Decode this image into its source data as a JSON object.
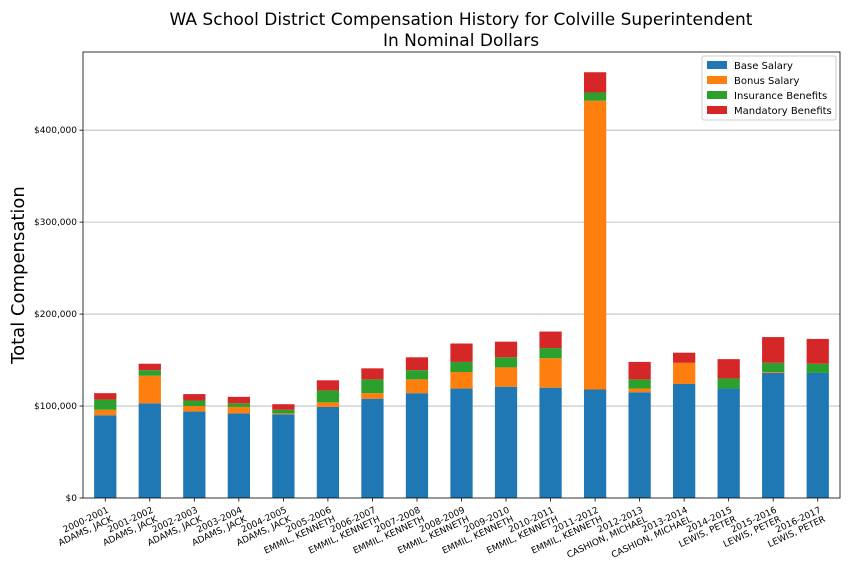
{
  "chart_data": {
    "type": "bar",
    "stacked": true,
    "title": "WA School District Compensation History for Colville Superintendent",
    "subtitle": "In Nominal Dollars",
    "xlabel": "",
    "ylabel": "Total Compensation",
    "ylim": [
      0,
      485000
    ],
    "yticks": [
      {
        "value": 0,
        "label": "$0"
      },
      {
        "value": 100000,
        "label": "$100,000"
      },
      {
        "value": 200000,
        "label": "$200,000"
      },
      {
        "value": 300000,
        "label": "$300,000"
      },
      {
        "value": 400000,
        "label": "$400,000"
      }
    ],
    "grid": "horizontal",
    "legend_position": "top-right",
    "categories": [
      [
        "2000-2001",
        "ADAMS, JACK"
      ],
      [
        "2001-2002",
        "ADAMS, JACK"
      ],
      [
        "2002-2003",
        "ADAMS, JACK"
      ],
      [
        "2003-2004",
        "ADAMS, JACK"
      ],
      [
        "2004-2005",
        "ADAMS, JACK"
      ],
      [
        "2005-2006",
        "EMMIL, KENNETH"
      ],
      [
        "2006-2007",
        "EMMIL, KENNETH"
      ],
      [
        "2007-2008",
        "EMMIL, KENNETH"
      ],
      [
        "2008-2009",
        "EMMIL, KENNETH"
      ],
      [
        "2009-2010",
        "EMMIL, KENNETH"
      ],
      [
        "2010-2011",
        "EMMIL, KENNETH"
      ],
      [
        "2011-2012",
        "EMMIL, KENNETH"
      ],
      [
        "2012-2013",
        "CASHION, MICHAEL"
      ],
      [
        "2013-2014",
        "CASHION, MICHAEL"
      ],
      [
        "2014-2015",
        "LEWIS, PETER"
      ],
      [
        "2015-2016",
        "LEWIS, PETER"
      ],
      [
        "2016-2017",
        "LEWIS, PETER"
      ]
    ],
    "series": [
      {
        "name": "Base Salary",
        "color": "#1f77b4",
        "values": [
          90000,
          103000,
          94000,
          92000,
          91000,
          99000,
          108000,
          114000,
          119000,
          121000,
          120000,
          118000,
          115000,
          124000,
          119000,
          136000,
          136000
        ]
      },
      {
        "name": "Bonus Salary",
        "color": "#ff7f0e",
        "values": [
          6000,
          30000,
          6000,
          7000,
          1000,
          5000,
          6000,
          15000,
          18000,
          21000,
          32000,
          314000,
          4000,
          23000,
          0,
          1000,
          0
        ]
      },
      {
        "name": "Insurance Benefits",
        "color": "#2ca02c",
        "values": [
          11000,
          6000,
          6000,
          4000,
          4000,
          13000,
          15000,
          10000,
          11000,
          11000,
          11000,
          9000,
          10000,
          0,
          11000,
          10000,
          10000
        ]
      },
      {
        "name": "Mandatory Benefits",
        "color": "#d62728",
        "values": [
          7000,
          7000,
          7000,
          7000,
          6000,
          11000,
          12000,
          14000,
          20000,
          17000,
          18000,
          22000,
          19000,
          11000,
          21000,
          28000,
          27000
        ]
      }
    ]
  }
}
